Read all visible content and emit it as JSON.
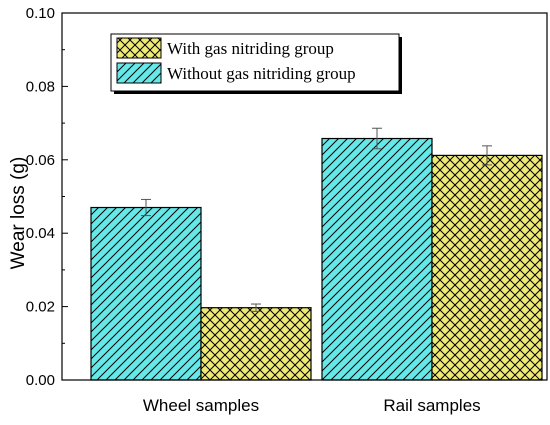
{
  "chart_data": {
    "type": "bar",
    "title": "",
    "xlabel": "",
    "ylabel": "Wear loss (g)",
    "categories": [
      "Wheel samples",
      "Rail samples"
    ],
    "ylim": [
      0,
      0.1
    ],
    "yticks": [
      "0.00",
      "0.02",
      "0.04",
      "0.06",
      "0.08",
      "0.10"
    ],
    "grid": false,
    "legend_position": "top-left",
    "series": [
      {
        "name": "Without gas nitriding group",
        "values": [
          0.047,
          0.0658
        ],
        "errors": [
          0.0022,
          0.0028
        ],
        "color": "#66e8e8",
        "pattern": "diagonal"
      },
      {
        "name": "With gas nitriding group",
        "values": [
          0.0197,
          0.0612
        ],
        "errors": [
          0.001,
          0.0026
        ],
        "color": "#eeea73",
        "pattern": "crosshatch"
      }
    ],
    "legend_order": [
      1,
      0
    ]
  }
}
